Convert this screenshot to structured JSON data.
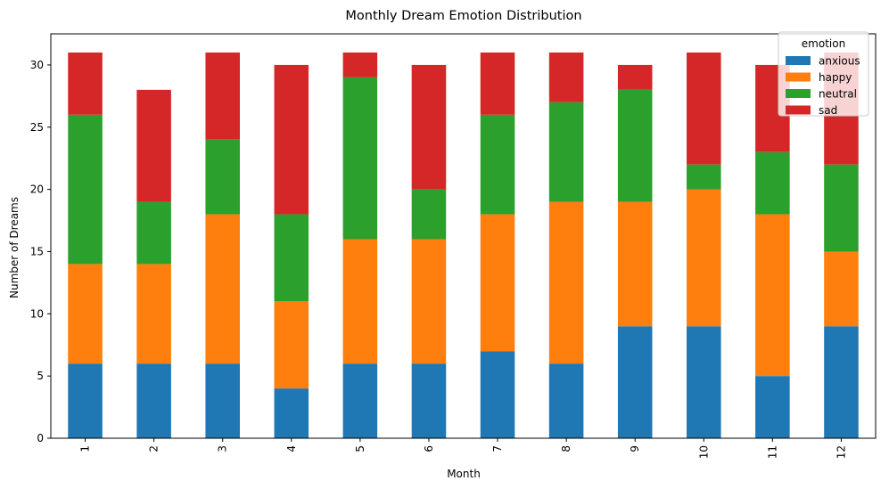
{
  "chart_data": {
    "type": "bar",
    "stacked": true,
    "title": "Monthly Dream Emotion Distribution",
    "xlabel": "Month",
    "ylabel": "Number of Dreams",
    "categories": [
      "1",
      "2",
      "3",
      "4",
      "5",
      "6",
      "7",
      "8",
      "9",
      "10",
      "11",
      "12"
    ],
    "yticks": [
      0,
      5,
      10,
      15,
      20,
      25,
      30
    ],
    "ylim": [
      0,
      32.5
    ],
    "grid": false,
    "legend": {
      "title": "emotion",
      "placement": "top-right"
    },
    "series": [
      {
        "name": "anxious",
        "color": "#1f77b4",
        "values": [
          6,
          6,
          6,
          4,
          6,
          6,
          7,
          6,
          9,
          9,
          5,
          9
        ]
      },
      {
        "name": "happy",
        "color": "#ff7f0e",
        "values": [
          8,
          8,
          12,
          7,
          10,
          10,
          11,
          13,
          10,
          11,
          13,
          6
        ]
      },
      {
        "name": "neutral",
        "color": "#2ca02c",
        "values": [
          12,
          5,
          6,
          7,
          13,
          4,
          8,
          8,
          9,
          2,
          5,
          7
        ]
      },
      {
        "name": "sad",
        "color": "#d62728",
        "values": [
          5,
          9,
          7,
          12,
          2,
          10,
          5,
          4,
          2,
          9,
          7,
          9
        ]
      }
    ]
  }
}
